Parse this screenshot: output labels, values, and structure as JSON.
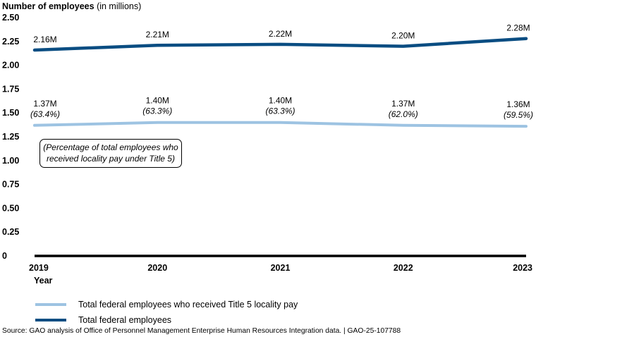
{
  "chart_data": {
    "type": "line",
    "ytitle_bold": "Number of employees",
    "ytitle_suffix": " (in millions)",
    "xlabel": "Year",
    "x": [
      "2019",
      "2020",
      "2021",
      "2022",
      "2023"
    ],
    "ylim": [
      0,
      2.5
    ],
    "yticks": [
      {
        "value": 0,
        "label": "0"
      },
      {
        "value": 0.25,
        "label": "0.25"
      },
      {
        "value": 0.5,
        "label": "0.50"
      },
      {
        "value": 0.75,
        "label": "0.75"
      },
      {
        "value": 1.0,
        "label": "1.00"
      },
      {
        "value": 1.25,
        "label": "1.25"
      },
      {
        "value": 1.5,
        "label": "1.50"
      },
      {
        "value": 1.75,
        "label": "1.75"
      },
      {
        "value": 2.0,
        "label": "2.00"
      },
      {
        "value": 2.25,
        "label": "2.25"
      },
      {
        "value": 2.5,
        "label": "2.50"
      }
    ],
    "grid": false,
    "series": [
      {
        "name": "Total federal employees who received Title 5 locality pay",
        "color": "#9dc3e2",
        "values": [
          1.37,
          1.4,
          1.4,
          1.37,
          1.36
        ],
        "labels": [
          "1.37M",
          "1.40M",
          "1.40M",
          "1.37M",
          "1.36M"
        ],
        "sublabels": [
          "(63.4%)",
          "(63.3%)",
          "(63.3%)",
          "(62.0%)",
          "(59.5%)"
        ]
      },
      {
        "name": "Total federal employees",
        "color": "#0a4d82",
        "values": [
          2.16,
          2.21,
          2.22,
          2.2,
          2.28
        ],
        "labels": [
          "2.16M",
          "2.21M",
          "2.22M",
          "2.20M",
          "2.28M"
        ]
      }
    ],
    "annotation": "(Percentage of total employees who received locality pay under Title 5)",
    "legend_position": "bottom-left"
  },
  "source": "Source: GAO analysis of Office of Personnel Management Enterprise Human Resources Integration data.  |  GAO-25-107788"
}
